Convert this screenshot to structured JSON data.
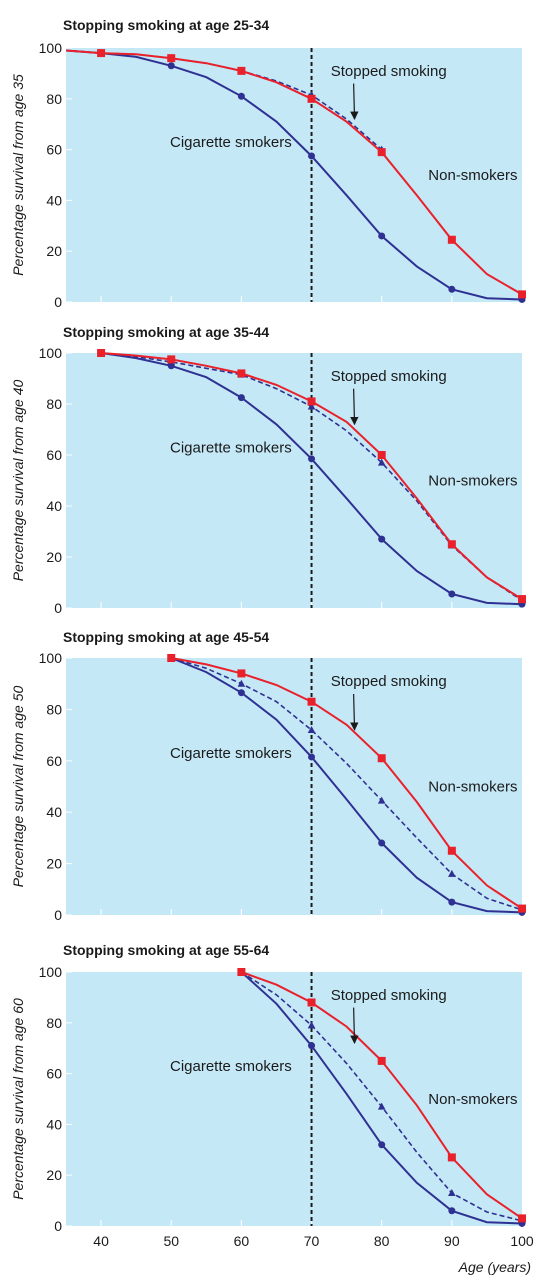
{
  "chart_data": [
    {
      "type": "line",
      "title": "Stopping smoking at age 25-34",
      "ylabel": "Percentage survival from age 35",
      "ylim": [
        0,
        100
      ],
      "xlim": [
        35,
        100
      ],
      "yticks": [
        "0",
        "20",
        "40",
        "60",
        "80",
        "100"
      ],
      "reference_line_x": 70,
      "series": [
        {
          "key": "non",
          "color": "#e8212b",
          "marker": "square",
          "x": [
            35,
            40,
            45,
            50,
            55,
            60,
            65,
            70,
            75,
            80,
            85,
            90,
            95,
            100
          ],
          "y": [
            99,
            98,
            97.5,
            96,
            94,
            91,
            86.5,
            80,
            71,
            59,
            42,
            24.5,
            11,
            3
          ]
        },
        {
          "key": "stopped",
          "color": "#2e3192",
          "marker": "triangle",
          "dashed": true,
          "x": [
            35,
            40,
            45,
            50,
            55,
            60,
            65,
            70,
            75,
            80
          ],
          "y": [
            99,
            98,
            97.5,
            96,
            94,
            91,
            87,
            81.5,
            72,
            60
          ]
        },
        {
          "key": "smokers",
          "color": "#2e3192",
          "marker": "circle",
          "x": [
            35,
            40,
            45,
            50,
            55,
            60,
            65,
            70,
            75,
            80,
            85,
            90,
            95,
            100
          ],
          "y": [
            99,
            98,
            96.5,
            93,
            88.5,
            81,
            71,
            57.5,
            42,
            26,
            14,
            5,
            1.5,
            1
          ]
        }
      ],
      "annotations": [
        {
          "text": "Stopped smoking",
          "x": 81,
          "y": 91,
          "arrow_from": [
            76,
            86
          ],
          "arrow_to": [
            70,
            72
          ]
        },
        {
          "text": "Cigarette smokers",
          "x": 58.5,
          "y": 63
        },
        {
          "text": "Non-smokers",
          "x": 93,
          "y": 50
        }
      ]
    },
    {
      "type": "line",
      "title": "Stopping smoking at age 35-44",
      "ylabel": "Percentage survival from age 40",
      "ylim": [
        0,
        100
      ],
      "xlim": [
        35,
        100
      ],
      "yticks": [
        "0",
        "20",
        "40",
        "60",
        "80",
        "100"
      ],
      "reference_line_x": 70,
      "series": [
        {
          "key": "non",
          "color": "#e8212b",
          "marker": "square",
          "x": [
            40,
            45,
            50,
            55,
            60,
            65,
            70,
            75,
            80,
            85,
            90,
            95,
            100
          ],
          "y": [
            100,
            99,
            97.5,
            95,
            92,
            87.5,
            81,
            73,
            60,
            43,
            25,
            12,
            3.5
          ]
        },
        {
          "key": "stopped",
          "color": "#2e3192",
          "marker": "triangle",
          "dashed": true,
          "x": [
            40,
            45,
            50,
            55,
            60,
            65,
            70,
            75,
            80,
            85,
            90,
            95,
            100
          ],
          "y": [
            100,
            98.5,
            96.5,
            94,
            91.5,
            86,
            79,
            69.5,
            57,
            42,
            24.5,
            12,
            3
          ]
        },
        {
          "key": "smokers",
          "color": "#2e3192",
          "marker": "circle",
          "x": [
            40,
            45,
            50,
            55,
            60,
            65,
            70,
            75,
            80,
            85,
            90,
            95,
            100
          ],
          "y": [
            100,
            98,
            95,
            90.5,
            82.5,
            72,
            58.5,
            43,
            27,
            14.5,
            5.5,
            2,
            1.5
          ]
        }
      ],
      "annotations": [
        {
          "text": "Stopped smoking",
          "x": 81,
          "y": 91,
          "arrow_from": [
            76,
            86
          ],
          "arrow_to": [
            70,
            72
          ]
        },
        {
          "text": "Cigarette smokers",
          "x": 58.5,
          "y": 63
        },
        {
          "text": "Non-smokers",
          "x": 93,
          "y": 50
        }
      ]
    },
    {
      "type": "line",
      "title": "Stopping smoking at age 45-54",
      "ylabel": "Percentage survival from age 50",
      "ylim": [
        0,
        100
      ],
      "xlim": [
        35,
        100
      ],
      "yticks": [
        "0",
        "20",
        "40",
        "60",
        "80",
        "100"
      ],
      "reference_line_x": 70,
      "series": [
        {
          "key": "non",
          "color": "#e8212b",
          "marker": "square",
          "x": [
            50,
            55,
            60,
            65,
            70,
            75,
            80,
            85,
            90,
            95,
            100
          ],
          "y": [
            100,
            97.5,
            94,
            89.5,
            83,
            74,
            61,
            44,
            25,
            11.5,
            2.5
          ]
        },
        {
          "key": "stopped",
          "color": "#2e3192",
          "marker": "triangle",
          "dashed": true,
          "x": [
            50,
            55,
            60,
            65,
            70,
            75,
            80,
            85,
            90,
            95,
            100
          ],
          "y": [
            100,
            96,
            90,
            83,
            72,
            59,
            44.5,
            30,
            16,
            6.5,
            2
          ]
        },
        {
          "key": "smokers",
          "color": "#2e3192",
          "marker": "circle",
          "x": [
            50,
            55,
            60,
            65,
            70,
            75,
            80,
            85,
            90,
            95,
            100
          ],
          "y": [
            100,
            94.5,
            86.5,
            76,
            61.5,
            45,
            28,
            14.5,
            5,
            1.5,
            1
          ]
        }
      ],
      "annotations": [
        {
          "text": "Stopped smoking",
          "x": 81,
          "y": 91,
          "arrow_from": [
            76,
            86
          ],
          "arrow_to": [
            70,
            72
          ]
        },
        {
          "text": "Cigarette smokers",
          "x": 58.5,
          "y": 63
        },
        {
          "text": "Non-smokers",
          "x": 93,
          "y": 50
        }
      ]
    },
    {
      "type": "line",
      "title": "Stopping smoking at age 55-64",
      "ylabel": "Percentage survival from age 60",
      "xlabel": "Age (years)",
      "ylim": [
        0,
        100
      ],
      "xlim": [
        35,
        100
      ],
      "xticks": [
        "40",
        "50",
        "60",
        "70",
        "80",
        "90",
        "100"
      ],
      "yticks": [
        "0",
        "20",
        "40",
        "60",
        "80",
        "100"
      ],
      "reference_line_x": 70,
      "series": [
        {
          "key": "non",
          "color": "#e8212b",
          "marker": "square",
          "x": [
            60,
            65,
            70,
            75,
            80,
            85,
            90,
            95,
            100
          ],
          "y": [
            100,
            95,
            88,
            78.5,
            65,
            47.5,
            27,
            12.5,
            3
          ]
        },
        {
          "key": "stopped",
          "color": "#2e3192",
          "marker": "triangle",
          "dashed": true,
          "x": [
            60,
            65,
            70,
            75,
            80,
            85,
            90,
            95,
            100
          ],
          "y": [
            100,
            91,
            79,
            64,
            47,
            29,
            13,
            5.5,
            2
          ]
        },
        {
          "key": "smokers",
          "color": "#2e3192",
          "marker": "circle",
          "x": [
            60,
            65,
            70,
            75,
            80,
            85,
            90,
            95,
            100
          ],
          "y": [
            100,
            87.5,
            71,
            52,
            32,
            17,
            6,
            1.5,
            1
          ]
        }
      ],
      "annotations": [
        {
          "text": "Stopped smoking",
          "x": 81,
          "y": 91,
          "arrow_from": [
            76,
            86
          ],
          "arrow_to": [
            70,
            72
          ]
        },
        {
          "text": "Cigarette smokers",
          "x": 58.5,
          "y": 63
        },
        {
          "text": "Non-smokers",
          "x": 93,
          "y": 50
        }
      ]
    }
  ],
  "colors": {
    "plot_background": "#c5e8f7",
    "non_smokers": "#e8212b",
    "smokers": "#2e3192",
    "reference_line": "#1a1a1a"
  }
}
